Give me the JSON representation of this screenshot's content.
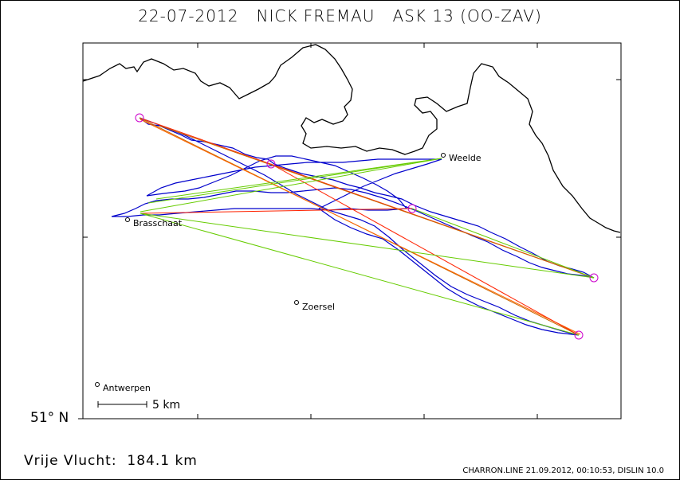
{
  "title": "22-07-2012   NICK FREMAU   ASK 13 (OO-ZAV)",
  "latitude_label": "51° N",
  "distance": "Vrije Vlucht:  184.1 km",
  "footer": "CHARRON.LINE 21.09.2012, 00:10:53, DISLIN 10.0",
  "scale_label": "5 km",
  "towns": [
    {
      "name": "Weelde"
    },
    {
      "name": "Brasschaat"
    },
    {
      "name": "Zoersel"
    },
    {
      "name": "Antwerpen"
    }
  ],
  "colors": {
    "border": "#000000",
    "track": "#0000cc",
    "leg_green": "#66cc00",
    "leg_red": "#ff2200",
    "leg_orange": "#cc6600",
    "turnpoint": "#cc00cc"
  }
}
